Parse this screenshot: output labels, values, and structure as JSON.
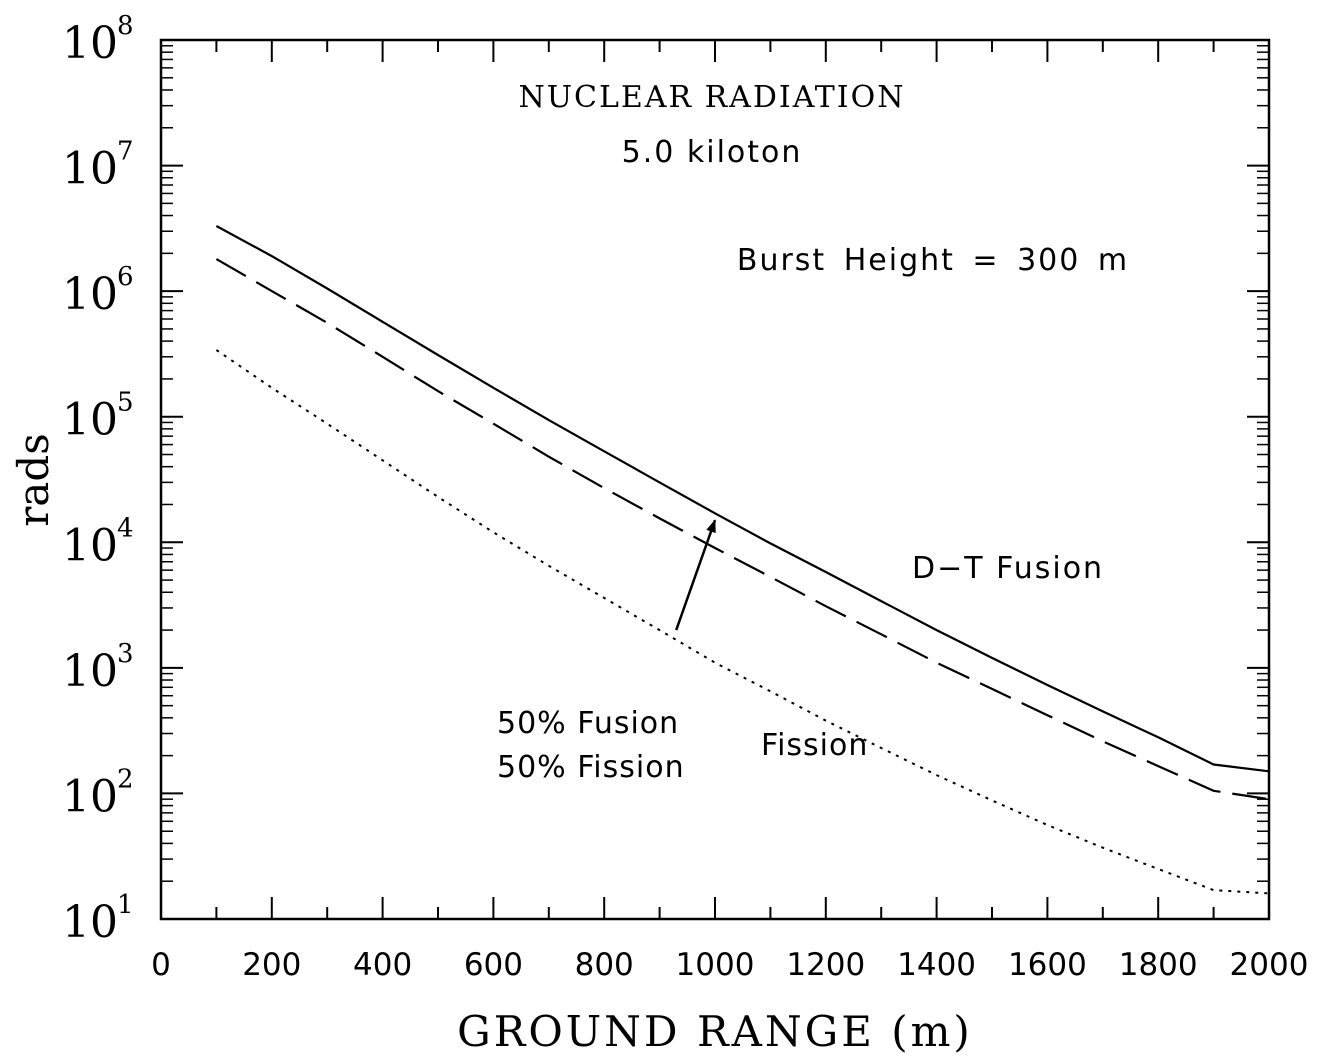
{
  "chart_data": {
    "type": "line",
    "title": "NUCLEAR RADIATION",
    "subtitle": "5.0 kiloton",
    "annotation": "Burst Height = 300 m",
    "xlabel": "GROUND RANGE (m)",
    "ylabel": "rads",
    "xlim": [
      0,
      2000
    ],
    "ylim": [
      10,
      100000000
    ],
    "yscale": "log",
    "grid": false,
    "x_ticks": [
      "0",
      "200",
      "400",
      "600",
      "800",
      "1000",
      "1200",
      "1400",
      "1600",
      "1800",
      "2000"
    ],
    "y_ticks": [
      {
        "base": "10",
        "exp": "1"
      },
      {
        "base": "10",
        "exp": "2"
      },
      {
        "base": "10",
        "exp": "3"
      },
      {
        "base": "10",
        "exp": "4"
      },
      {
        "base": "10",
        "exp": "5"
      },
      {
        "base": "10",
        "exp": "6"
      },
      {
        "base": "10",
        "exp": "7"
      },
      {
        "base": "10",
        "exp": "8"
      }
    ],
    "series": [
      {
        "name": "D-T Fusion",
        "style": "solid",
        "x": [
          100,
          200,
          300,
          400,
          500,
          600,
          700,
          800,
          900,
          1000,
          1100,
          1200,
          1300,
          1400,
          1500,
          1600,
          1700,
          1800,
          1900,
          2000
        ],
        "y": [
          3300000,
          1900000,
          1050000,
          570000,
          310000,
          170000,
          94000,
          53000,
          30000,
          17000,
          9800,
          5800,
          3400,
          2000,
          1200,
          730,
          450,
          280,
          170,
          150
        ]
      },
      {
        "name": "50% Fusion 50% Fission",
        "style": "dashed",
        "x": [
          100,
          200,
          300,
          400,
          500,
          600,
          700,
          800,
          900,
          1000,
          1100,
          1200,
          1300,
          1400,
          1500,
          1600,
          1700,
          1800,
          1900,
          2000
        ],
        "y": [
          1800000,
          1000000,
          560000,
          300000,
          160000,
          88000,
          48000,
          27000,
          15500,
          9000,
          5300,
          3100,
          1850,
          1100,
          680,
          420,
          260,
          165,
          105,
          90
        ]
      },
      {
        "name": "Fission",
        "style": "dotted",
        "x": [
          100,
          200,
          300,
          400,
          500,
          600,
          700,
          800,
          900,
          1000,
          1100,
          1200,
          1300,
          1400,
          1500,
          1600,
          1700,
          1800,
          1900,
          2000
        ],
        "y": [
          340000,
          170000,
          88000,
          45000,
          23000,
          12000,
          6500,
          3600,
          2000,
          1100,
          650,
          380,
          230,
          140,
          88,
          56,
          37,
          25,
          17,
          16
        ]
      }
    ],
    "labels": {
      "dt_fusion": "D−T Fusion",
      "mixed_line1": "50% Fusion",
      "mixed_line2": "50% Fission",
      "fission": "Fission"
    },
    "arrow": {
      "from": [
        930,
        2000
      ],
      "to": [
        1000,
        15000
      ]
    }
  }
}
